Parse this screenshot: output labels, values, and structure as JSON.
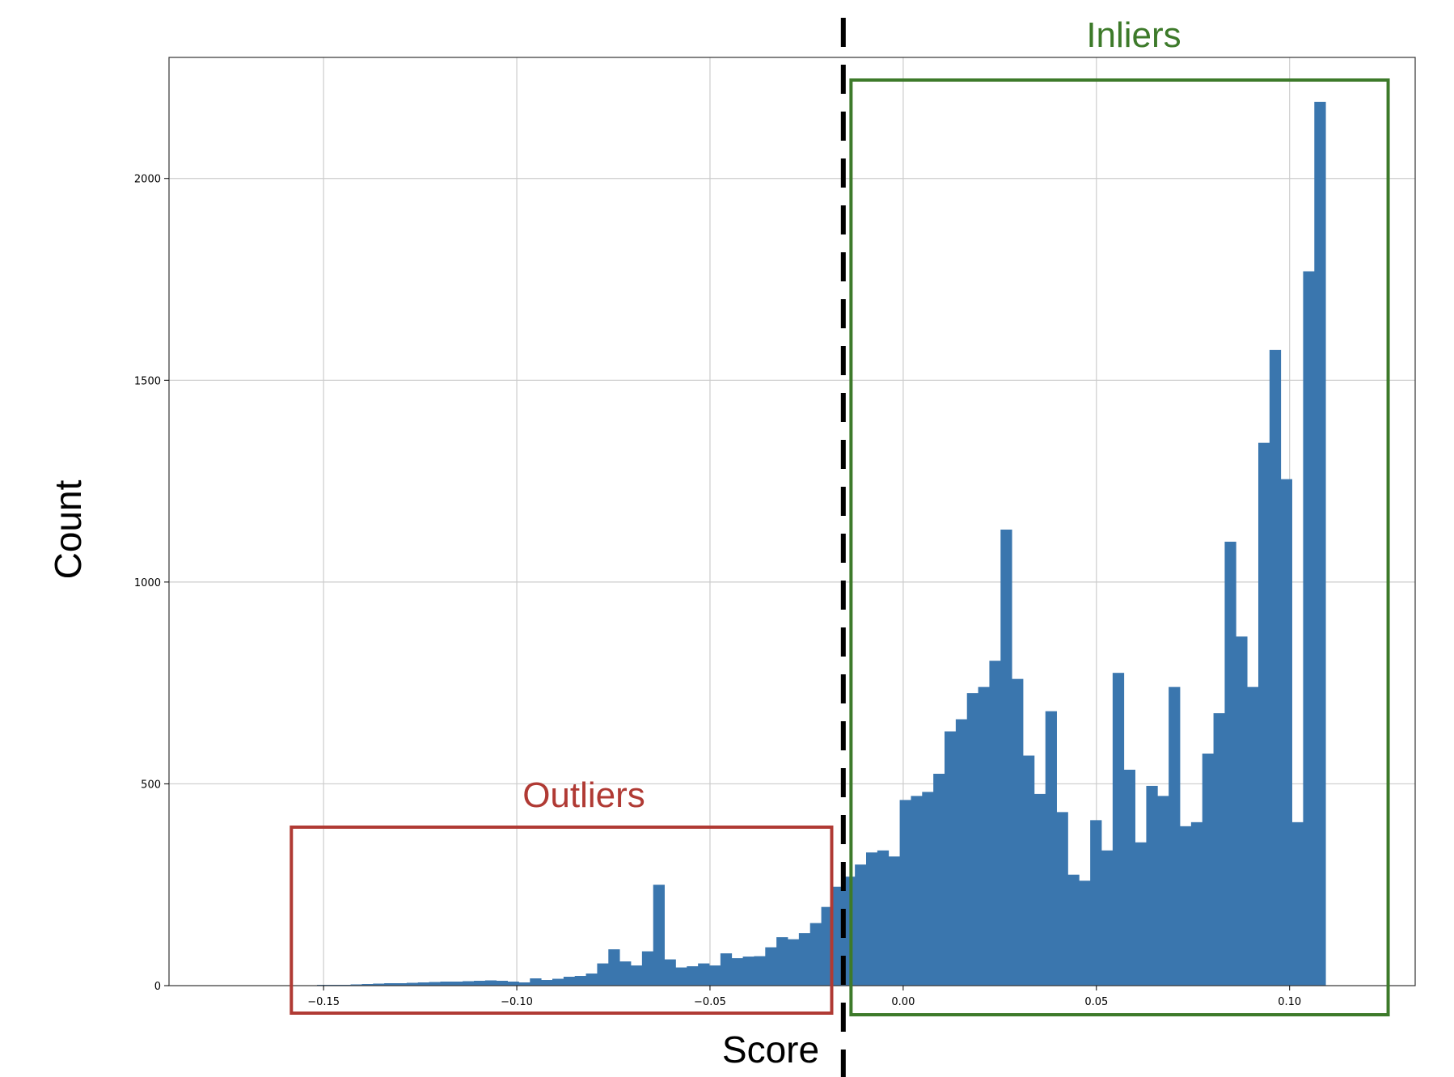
{
  "colors": {
    "bars": "#3a76ae",
    "grid": "#cccccc",
    "axes": "#000000",
    "outliers": "#b03a34",
    "inliers": "#3d7a2a",
    "threshold": "#000000"
  },
  "annotations": {
    "outliers_label": "Outliers",
    "inliers_label": "Inliers"
  },
  "chart_data": {
    "type": "bar",
    "title": "",
    "xlabel": "Score",
    "ylabel": "Count",
    "xlim": [
      -0.19,
      0.1325
    ],
    "ylim": [
      0,
      2300
    ],
    "grid": true,
    "legend": "none",
    "xticks": [
      -0.15,
      -0.1,
      -0.05,
      0.0,
      0.05,
      0.1
    ],
    "xtick_labels": [
      "−0.15",
      "−0.10",
      "−0.05",
      "0.00",
      "0.05",
      "0.10"
    ],
    "yticks": [
      0,
      500,
      1000,
      1500,
      2000
    ],
    "ytick_labels": [
      "0",
      "500",
      "1000",
      "1500",
      "2000"
    ],
    "bin_start": -0.1575,
    "bin_width": 0.0029,
    "values": [
      1,
      1,
      2,
      2,
      2,
      3,
      4,
      5,
      6,
      6,
      7,
      8,
      9,
      10,
      10,
      11,
      12,
      13,
      12,
      10,
      8,
      18,
      14,
      17,
      22,
      24,
      30,
      55,
      90,
      60,
      50,
      85,
      250,
      65,
      45,
      48,
      55,
      50,
      80,
      68,
      72,
      73,
      95,
      120,
      115,
      130,
      155,
      195,
      245,
      270,
      300,
      330,
      335,
      320,
      460,
      470,
      480,
      525,
      630,
      660,
      725,
      740,
      805,
      1130,
      760,
      570,
      475,
      680,
      430,
      275,
      260,
      410,
      335,
      775,
      535,
      355,
      495,
      470,
      740,
      395,
      405,
      575,
      675,
      1100,
      865,
      740,
      1345,
      1575,
      1255,
      405,
      1770,
      2190
    ],
    "threshold_x": -0.0155,
    "outliers_range": [
      -0.1575,
      -0.0185
    ],
    "inliers_range": [
      -0.0135,
      0.1255
    ]
  }
}
